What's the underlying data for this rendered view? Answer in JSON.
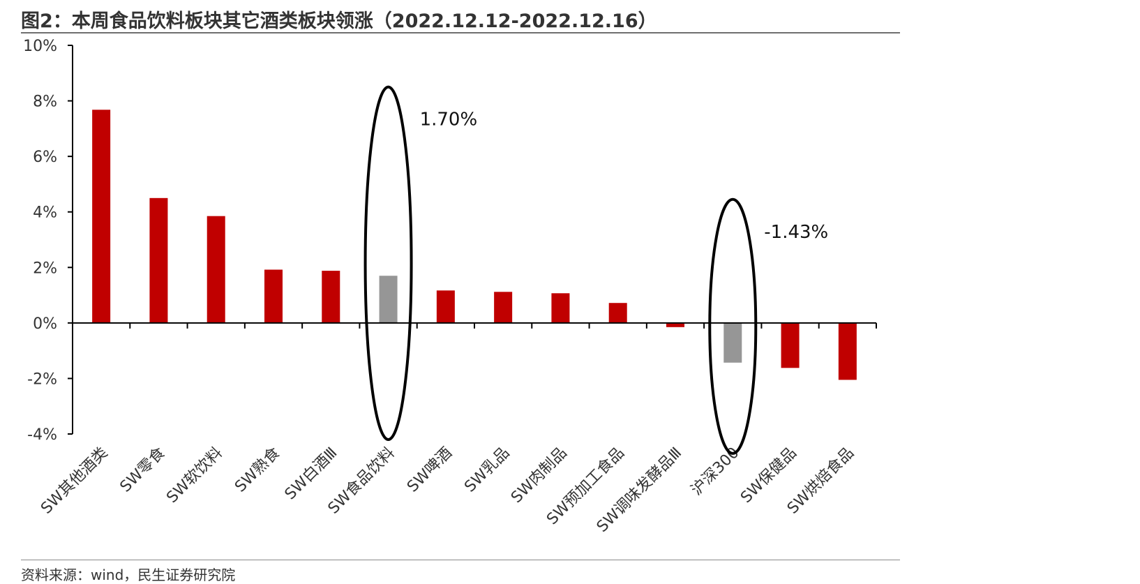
{
  "title": "图2：本周食品饮料板块其它酒类板块领涨（2022.12.12-2022.12.16）",
  "source": "资料来源：wind，民生证券研究院",
  "chart_data": {
    "type": "bar",
    "categories": [
      "SW其他酒类",
      "SW零食",
      "SW软饮料",
      "SW熟食",
      "SW白酒Ⅲ",
      "SW食品饮料",
      "SW啤酒",
      "SW乳品",
      "SW肉制品",
      "SW预加工食品",
      "SW调味发酵品Ⅲ",
      "沪深300",
      "SW保健品",
      "SW烘焙食品"
    ],
    "values": [
      7.68,
      4.5,
      3.85,
      1.92,
      1.88,
      1.7,
      1.17,
      1.12,
      1.07,
      0.72,
      -0.15,
      -1.43,
      -1.62,
      -2.05
    ],
    "bar_colors": [
      "#c00000",
      "#c00000",
      "#c00000",
      "#c00000",
      "#c00000",
      "#969696",
      "#c00000",
      "#c00000",
      "#c00000",
      "#c00000",
      "#c00000",
      "#969696",
      "#c00000",
      "#c00000"
    ],
    "ylim": [
      -4,
      10
    ],
    "yticks": [
      "-4%",
      "-2%",
      "0%",
      "2%",
      "4%",
      "6%",
      "8%",
      "10%"
    ],
    "ytick_values": [
      -4,
      -2,
      0,
      2,
      4,
      6,
      8,
      10
    ],
    "annotations": [
      {
        "category_index": 5,
        "text": "1.70%",
        "y_top": 8.5,
        "y_bottom": -4.2
      },
      {
        "category_index": 11,
        "text": "-1.43%",
        "y_top": 4.45,
        "y_bottom": -4.7
      }
    ],
    "xlabel": "",
    "ylabel": ""
  }
}
